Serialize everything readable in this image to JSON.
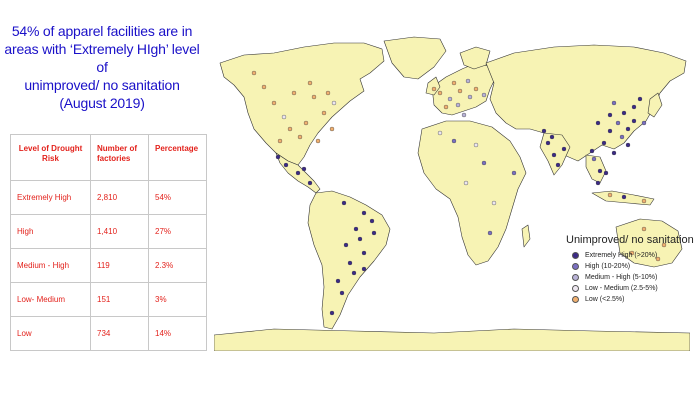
{
  "headline": {
    "line1": "54% of apparel facilities are in",
    "line2": "areas with ‘Extremely HIgh’ level of",
    "line3": "unimproved/ no sanitation",
    "line4": "(August 2019)"
  },
  "table": {
    "headers": [
      "Level of Drought Risk",
      "Number of factories",
      "Percentage"
    ],
    "rows": [
      {
        "level": "Extremely High",
        "count": "2,810",
        "pct": "54%"
      },
      {
        "level": "High",
        "count": "1,410",
        "pct": "27%"
      },
      {
        "level": "Medium - High",
        "count": "119",
        "pct": "2.3%"
      },
      {
        "level": "Low- Medium",
        "count": "151",
        "pct": "3%"
      },
      {
        "level": "Low",
        "count": "734",
        "pct": "14%"
      }
    ]
  },
  "legend": {
    "title": "Unimproved/ no sanitation",
    "items": [
      {
        "label": "Extremely High (>20%)",
        "color": "#3b2a86"
      },
      {
        "label": "High (10-20%)",
        "color": "#7a6fc0"
      },
      {
        "label": "Medium - High (5-10%)",
        "color": "#b9b3d8"
      },
      {
        "label": "Low - Medium (2.5-5%)",
        "color": "#ede7f0"
      },
      {
        "label": "Low (<2.5%)",
        "color": "#f0b070"
      }
    ]
  },
  "colors": {
    "land": "#f7f3b4",
    "border": "#333333",
    "title": "#1a10c8",
    "table_text": "#e3221c"
  }
}
